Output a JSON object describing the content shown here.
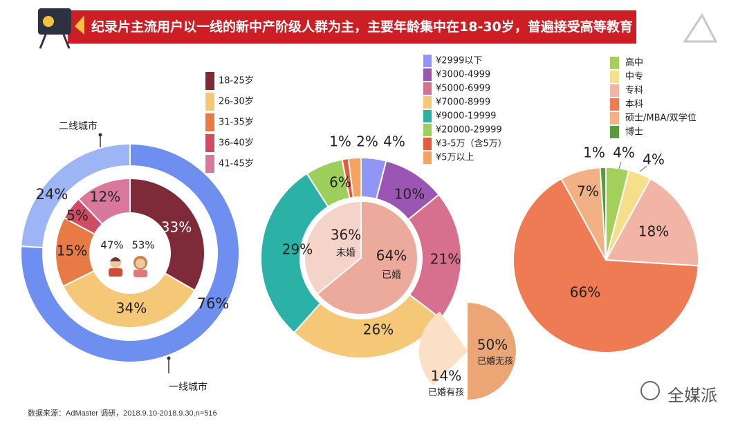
{
  "title": "纪录片主流用户以一线的新中产阶级人群为主，主要年龄集中在18-30岁，普遍接受高等教育",
  "source": "数据来源：AdMaster 调研，2018.9.10-2018.9.30,n=516",
  "watermark": "全媒派",
  "chart_data": [
    {
      "type": "donut",
      "rings": [
        {
          "categories": [
            "一线城市",
            "二线城市"
          ],
          "values": [
            76,
            24
          ],
          "labels": [
            "76%",
            "24%"
          ],
          "colors": [
            "#6e8ff0",
            "#9db4f5"
          ]
        },
        {
          "categories": [
            "18-25岁",
            "26-30岁",
            "31-35岁",
            "36-40岁",
            "41-45岁"
          ],
          "values": [
            33,
            34,
            15,
            5,
            12
          ],
          "labels": [
            "33%",
            "34%",
            "15%",
            "5%",
            "12%"
          ],
          "colors": [
            "#7e2a38",
            "#f4c877",
            "#e87a45",
            "#cf4c63",
            "#d8789a"
          ]
        }
      ],
      "center": {
        "labels": [
          "47%",
          "53%"
        ],
        "values": [
          47,
          53
        ]
      },
      "legend": {
        "position": "top-right",
        "items": [
          "18-25岁",
          "26-30岁",
          "31-35岁",
          "36-40岁",
          "41-45岁"
        ],
        "colors": [
          "#7e2a38",
          "#f4c877",
          "#e87a45",
          "#cf4c63",
          "#d8789a"
        ]
      },
      "callouts": [
        "二线城市",
        "一线城市"
      ]
    },
    {
      "type": "donut",
      "rings": [
        {
          "categories": [
            "¥2999以下",
            "¥3000-4999",
            "¥5000-6999",
            "¥7000-8999",
            "¥9000-19999",
            "¥20000-29999",
            "¥3-5万（含5万）",
            "¥5万以上"
          ],
          "values": [
            4,
            10,
            21,
            26,
            29,
            6,
            1,
            2
          ],
          "labels": [
            "4%",
            "10%",
            "21%",
            "26%",
            "29%",
            "6%",
            "1%",
            "2%"
          ],
          "colors": [
            "#8f96f5",
            "#9b55b3",
            "#d7708e",
            "#f4c877",
            "#2bb1a6",
            "#9ccf5c",
            "#e45a3c",
            "#f4a460"
          ]
        },
        {
          "categories": [
            "已婚",
            "未婚"
          ],
          "values": [
            64,
            36
          ],
          "labels": [
            "64%",
            "36%"
          ],
          "colors": [
            "#ebaa9c",
            "#f6d3c8"
          ]
        }
      ],
      "legend": {
        "position": "top",
        "items": [
          "¥2999以下",
          "¥3000-4999",
          "¥5000-6999",
          "¥7000-8999",
          "¥9000-19999",
          "¥20000-29999",
          "¥3-5万（含5万）",
          "¥5万以上"
        ],
        "colors": [
          "#8f96f5",
          "#9b55b3",
          "#d7708e",
          "#f4c877",
          "#2bb1a6",
          "#9ccf5c",
          "#e45a3c",
          "#f4a460"
        ]
      },
      "breakout": {
        "type": "pie",
        "categories": [
          "已婚无孩",
          "已婚有孩"
        ],
        "values": [
          50,
          14
        ],
        "labels": [
          "50%",
          "14%"
        ],
        "colors": [
          "#eca574",
          "#fbe0c6"
        ]
      }
    },
    {
      "type": "pie",
      "categories": [
        "高中",
        "中专",
        "专科",
        "本科",
        "硕士/MBA/双学位",
        "博士"
      ],
      "values": [
        4,
        4,
        18,
        66,
        7,
        1
      ],
      "labels": [
        "4%",
        "4%",
        "18%",
        "66%",
        "7%",
        "1%"
      ],
      "colors": [
        "#a3d05a",
        "#f6df8b",
        "#f2b4a4",
        "#ef7b55",
        "#f1b184",
        "#5a9a3a"
      ],
      "legend": {
        "position": "top",
        "items": [
          "高中",
          "中专",
          "专科",
          "本科",
          "硕士/MBA/双学位",
          "博士"
        ],
        "colors": [
          "#a3d05a",
          "#f6df8b",
          "#f2b4a4",
          "#ef7b55",
          "#f1b184",
          "#5a9a3a"
        ]
      }
    }
  ]
}
